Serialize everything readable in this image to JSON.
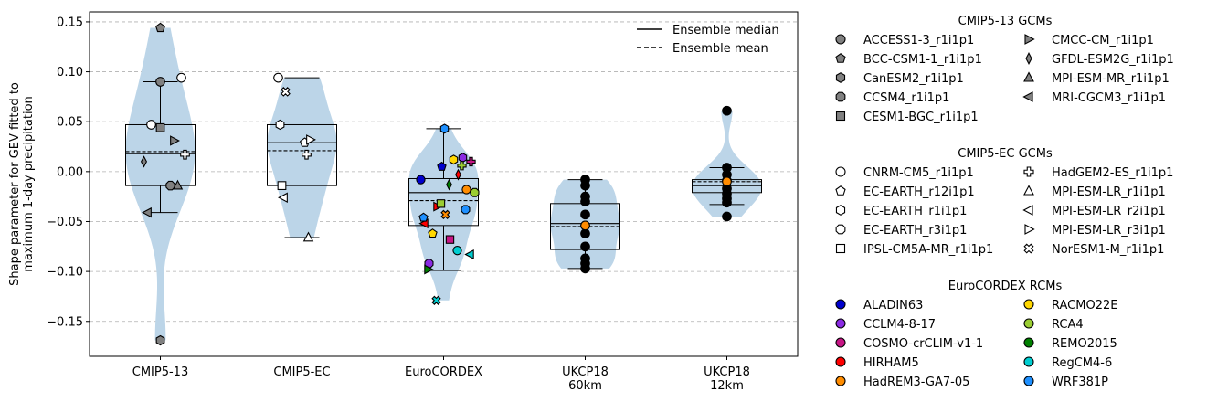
{
  "chart_data": {
    "type": "violin",
    "ylabel": "Shape parameter for GEV fitted to\nmaximum 1-day precipitation",
    "ylim": [
      -0.185,
      0.16
    ],
    "yticks": [
      0.15,
      0.1,
      0.05,
      0.0,
      -0.05,
      -0.1,
      -0.15
    ],
    "ytick_labels": [
      "0.15",
      "0.10",
      "0.05",
      "0.00",
      "−0.05",
      "−0.10",
      "−0.15"
    ],
    "grid": "horizontal dashed",
    "categories": [
      "CMIP5-13",
      "CMIP5-EC",
      "EuroCORDEX",
      "UKCP18\n60km",
      "UKCP18\n12km"
    ],
    "groups": [
      {
        "category": "CMIP5-13",
        "median": 0.018,
        "mean": 0.02,
        "q1": -0.014,
        "q3": 0.047,
        "whisker_low": -0.041,
        "whisker_high": 0.09,
        "min": -0.169,
        "max": 0.144,
        "points": [
          {
            "model": "ACCESS1-3_r1i1p1",
            "value": 0.09
          },
          {
            "model": "BCC-CSM1-1_r1i1p1",
            "value": 0.144
          },
          {
            "model": "CanESM2_r1i1p1",
            "value": -0.169
          },
          {
            "model": "CCSM4_r1i1p1",
            "value": -0.014
          },
          {
            "model": "CESM1-BGC_r1i1p1",
            "value": 0.044
          },
          {
            "model": "CMCC-CM_r1i1p1",
            "value": 0.031
          },
          {
            "model": "GFDL-ESM2G_r1i1p1",
            "value": 0.01
          },
          {
            "model": "MPI-ESM-MR_r1i1p1",
            "value": -0.014
          },
          {
            "model": "MRI-CGCM3_r1i1p1",
            "value": -0.041
          },
          {
            "model": "",
            "value": 0.094,
            "marker": "o-white"
          },
          {
            "model": "",
            "value": 0.047,
            "marker": "o-white"
          },
          {
            "model": "",
            "value": 0.017,
            "marker": "P-white"
          }
        ]
      },
      {
        "category": "CMIP5-EC",
        "median": 0.029,
        "mean": 0.021,
        "q1": -0.014,
        "q3": 0.047,
        "whisker_low": -0.066,
        "whisker_high": 0.094,
        "min": -0.066,
        "max": 0.094,
        "points": [
          {
            "model": "CNRM-CM5_r1i1p1",
            "value": 0.094
          },
          {
            "model": "EC-EARTH_r12i1p1",
            "value": 0.029
          },
          {
            "model": "EC-EARTH_r1i1p1",
            "value": 0.047
          },
          {
            "model": "HadGEM2-ES_r1i1p1",
            "value": 0.017
          },
          {
            "model": "IPSL-CM5A-MR_r1i1p1",
            "value": -0.014
          },
          {
            "model": "MPI-ESM-LR_r1i1p1",
            "value": -0.066
          },
          {
            "model": "MPI-ESM-LR_r2i1p1",
            "value": -0.026
          },
          {
            "model": "MPI-ESM-LR_r3i1p1",
            "value": 0.032
          },
          {
            "model": "NorESM1-M_r1i1p1",
            "value": 0.08
          }
        ]
      },
      {
        "category": "EuroCORDEX",
        "median": -0.021,
        "mean": -0.029,
        "q1": -0.054,
        "q3": -0.007,
        "whisker_low": -0.099,
        "whisker_high": 0.043,
        "min": -0.129,
        "max": 0.043,
        "points": [
          {
            "model": "ALADIN63",
            "value": -0.008
          },
          {
            "model": "ALADIN63",
            "value": 0.005
          },
          {
            "model": "CCLM4-8-17",
            "value": 0.014
          },
          {
            "model": "CCLM4-8-17",
            "value": -0.092
          },
          {
            "model": "COSMO-crCLIM-v1-1",
            "value": -0.068
          },
          {
            "model": "COSMO-crCLIM-v1-1",
            "value": 0.01
          },
          {
            "model": "HIRHAM5",
            "value": -0.035
          },
          {
            "model": "HIRHAM5",
            "value": -0.003
          },
          {
            "model": "HIRHAM5",
            "value": -0.052
          },
          {
            "model": "HadREM3-GA7-05",
            "value": -0.043
          },
          {
            "model": "HadREM3-GA7-05",
            "value": -0.018
          },
          {
            "model": "RACMO22E",
            "value": -0.062
          },
          {
            "model": "RACMO22E",
            "value": 0.012
          },
          {
            "model": "RCA4",
            "value": -0.021
          },
          {
            "model": "RCA4",
            "value": -0.032
          },
          {
            "model": "RCA4",
            "value": 0.006
          },
          {
            "model": "REMO2015",
            "value": -0.098
          },
          {
            "model": "REMO2015",
            "value": -0.013
          },
          {
            "model": "RegCM4-6",
            "value": -0.083
          },
          {
            "model": "RegCM4-6",
            "value": -0.129
          },
          {
            "model": "RegCM4-6",
            "value": -0.079
          },
          {
            "model": "WRF381P",
            "value": -0.046
          },
          {
            "model": "WRF381P",
            "value": 0.043
          },
          {
            "model": "WRF381P",
            "value": -0.038
          }
        ]
      },
      {
        "category": "UKCP18\n60km",
        "median": -0.052,
        "mean": -0.055,
        "q1": -0.078,
        "q3": -0.032,
        "whisker_low": -0.097,
        "whisker_high": -0.008,
        "min": -0.097,
        "max": -0.008,
        "points": [
          {
            "model": "",
            "value": -0.008
          },
          {
            "model": "",
            "value": -0.014
          },
          {
            "model": "",
            "value": -0.025
          },
          {
            "model": "",
            "value": -0.043
          },
          {
            "model": "",
            "value": -0.054
          },
          {
            "model": "",
            "value": -0.062
          },
          {
            "model": "",
            "value": -0.075
          },
          {
            "model": "",
            "value": -0.087
          },
          {
            "model": "",
            "value": -0.092
          },
          {
            "model": "",
            "value": -0.097
          },
          {
            "model": "",
            "value": -0.03
          },
          {
            "model": "",
            "value": -0.054,
            "color": "#ff8c00"
          }
        ]
      },
      {
        "category": "UKCP18\n12km",
        "median": -0.014,
        "mean": -0.01,
        "q1": -0.021,
        "q3": -0.008,
        "whisker_low": -0.033,
        "whisker_high": 0.004,
        "min": -0.045,
        "max": 0.061,
        "points": [
          {
            "model": "",
            "value": 0.061
          },
          {
            "model": "",
            "value": 0.004
          },
          {
            "model": "",
            "value": -0.003
          },
          {
            "model": "",
            "value": -0.009
          },
          {
            "model": "",
            "value": -0.017
          },
          {
            "model": "",
            "value": -0.022
          },
          {
            "model": "",
            "value": -0.027
          },
          {
            "model": "",
            "value": -0.031
          },
          {
            "model": "",
            "value": -0.045
          },
          {
            "model": "",
            "value": -0.01,
            "color": "#ff8c00"
          }
        ]
      }
    ],
    "inner_legend": [
      {
        "label": "Ensemble median",
        "style": "solid"
      },
      {
        "label": "Ensemble mean",
        "style": "dashed"
      }
    ],
    "legend_groups": [
      {
        "title": "CMIP5-13 GCMs",
        "items": [
          {
            "label": "ACCESS1-3_r1i1p1",
            "marker": "circle",
            "fill": "#808080"
          },
          {
            "label": "CMCC-CM_r1i1p1",
            "marker": "tri-right",
            "fill": "#808080"
          },
          {
            "label": "BCC-CSM1-1_r1i1p1",
            "marker": "pentagon",
            "fill": "#808080"
          },
          {
            "label": "GFDL-ESM2G_r1i1p1",
            "marker": "thin-diamond",
            "fill": "#808080"
          },
          {
            "label": "CanESM2_r1i1p1",
            "marker": "hexagon",
            "fill": "#808080"
          },
          {
            "label": "MPI-ESM-MR_r1i1p1",
            "marker": "tri-up",
            "fill": "#808080"
          },
          {
            "label": "CCSM4_r1i1p1",
            "marker": "octagon",
            "fill": "#808080"
          },
          {
            "label": "MRI-CGCM3_r1i1p1",
            "marker": "tri-left",
            "fill": "#808080"
          },
          {
            "label": "CESM1-BGC_r1i1p1",
            "marker": "square",
            "fill": "#808080"
          }
        ]
      },
      {
        "title": "CMIP5-EC GCMs",
        "items": [
          {
            "label": "CNRM-CM5_r1i1p1",
            "marker": "circle",
            "fill": "#ffffff"
          },
          {
            "label": "HadGEM2-ES_r1i1p1",
            "marker": "plus",
            "fill": "#ffffff"
          },
          {
            "label": "EC-EARTH_r12i1p1",
            "marker": "pentagon",
            "fill": "#ffffff"
          },
          {
            "label": "MPI-ESM-LR_r1i1p1",
            "marker": "tri-up",
            "fill": "#ffffff"
          },
          {
            "label": "EC-EARTH_r1i1p1",
            "marker": "hexagon",
            "fill": "#ffffff"
          },
          {
            "label": "MPI-ESM-LR_r2i1p1",
            "marker": "tri-left",
            "fill": "#ffffff"
          },
          {
            "label": "EC-EARTH_r3i1p1",
            "marker": "octagon",
            "fill": "#ffffff"
          },
          {
            "label": "MPI-ESM-LR_r3i1p1",
            "marker": "tri-right",
            "fill": "#ffffff"
          },
          {
            "label": "IPSL-CM5A-MR_r1i1p1",
            "marker": "square",
            "fill": "#ffffff"
          },
          {
            "label": "NorESM1-M_r1i1p1",
            "marker": "x",
            "fill": "#ffffff"
          }
        ]
      },
      {
        "title": "EuroCORDEX RCMs",
        "items": [
          {
            "label": "ALADIN63",
            "marker": "circle",
            "fill": "#0000cd"
          },
          {
            "label": "RACMO22E",
            "marker": "circle",
            "fill": "#ffd700"
          },
          {
            "label": "CCLM4-8-17",
            "marker": "circle",
            "fill": "#8a2be2"
          },
          {
            "label": "RCA4",
            "marker": "circle",
            "fill": "#9acd32"
          },
          {
            "label": "COSMO-crCLIM-v1-1",
            "marker": "circle",
            "fill": "#c71585"
          },
          {
            "label": "REMO2015",
            "marker": "circle",
            "fill": "#008000"
          },
          {
            "label": "HIRHAM5",
            "marker": "circle",
            "fill": "#ff0000"
          },
          {
            "label": "RegCM4-6",
            "marker": "circle",
            "fill": "#00ced1"
          },
          {
            "label": "HadREM3-GA7-05",
            "marker": "circle",
            "fill": "#ff8c00"
          },
          {
            "label": "WRF381P",
            "marker": "circle",
            "fill": "#1e90ff"
          }
        ]
      }
    ],
    "colors": {
      "violin": "#bcd5e8",
      "grid": "#b0b0b0"
    }
  }
}
